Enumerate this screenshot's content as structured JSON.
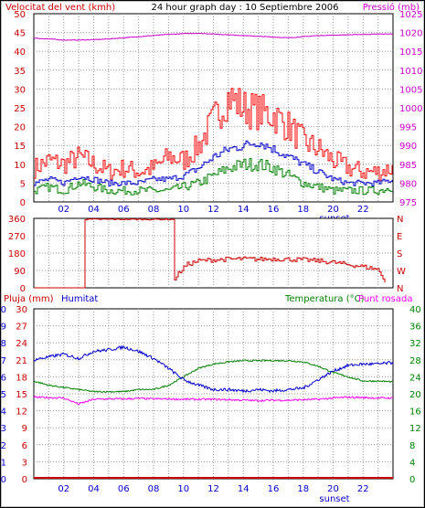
{
  "header": {
    "title": "24 hour graph day : 10 Septiembre 2006",
    "left_label": "Velocitat del vent (kmh)",
    "right_label": "Pressió (mb)"
  },
  "panel3_labels": {
    "rain": "Pluja (mm)",
    "humidity": "Humitat",
    "temperature": "Temperatura (°C)",
    "dewpoint": "Punt rosada"
  },
  "x_ticks": [
    "02",
    "04",
    "06",
    "08",
    "10",
    "12",
    "14",
    "16",
    "18",
    "20",
    "22"
  ],
  "sunset_label": "sunset",
  "colors": {
    "wind_gust": "#ff0000",
    "wind_avg": "#0000cc",
    "wind_low": "#008000",
    "pressure": "#cc00cc",
    "direction": "#cc0000",
    "humidity": "#0000cc",
    "temperature": "#008000",
    "dewpoint": "#ff00ff",
    "rain": "#cc0000",
    "grid": "#999999"
  },
  "chart_data": [
    {
      "type": "line",
      "title": "24 hour graph day : 10 Septiembre 2006",
      "ylabel": "Velocitat del vent (kmh)",
      "ylim": [
        0,
        50
      ],
      "yticks": [
        0,
        5,
        10,
        15,
        20,
        25,
        30,
        35,
        40,
        45,
        50
      ],
      "y2label": "Pressió (mb)",
      "y2lim": [
        975,
        1025
      ],
      "y2ticks": [
        975,
        980,
        985,
        990,
        995,
        1000,
        1005,
        1010,
        1015,
        1020,
        1025
      ],
      "x_hours": [
        0,
        1,
        2,
        3,
        4,
        5,
        6,
        7,
        8,
        9,
        10,
        11,
        12,
        13,
        14,
        15,
        16,
        17,
        18,
        19,
        20,
        21,
        22,
        23,
        24
      ],
      "series": [
        {
          "axis": "left",
          "values": [
            9,
            11,
            10,
            12,
            10,
            8,
            9,
            8,
            9,
            12,
            11,
            15,
            22,
            28,
            25,
            24,
            23,
            20,
            16,
            14,
            11,
            9,
            8,
            8,
            9
          ]
        },
        {
          "axis": "left",
          "values": [
            5,
            6,
            5,
            7,
            6,
            5,
            5,
            5,
            6,
            6,
            7,
            9,
            12,
            14,
            15,
            16,
            14,
            12,
            10,
            8,
            6,
            5,
            5,
            5,
            6
          ]
        },
        {
          "axis": "left",
          "values": [
            3,
            4,
            3,
            5,
            4,
            3,
            3,
            3,
            3,
            3,
            4,
            5,
            7,
            9,
            10,
            10,
            9,
            7,
            5,
            4,
            3,
            3,
            3,
            3,
            4
          ]
        },
        {
          "axis": "right",
          "values": [
            1018.5,
            1018.3,
            1018.0,
            1018.0,
            1018.1,
            1018.3,
            1018.6,
            1018.9,
            1019.2,
            1019.5,
            1019.7,
            1019.8,
            1019.6,
            1019.4,
            1019.2,
            1019.0,
            1018.8,
            1018.6,
            1018.9,
            1019.2,
            1019.3,
            1019.4,
            1019.5,
            1019.6,
            1019.6
          ]
        }
      ]
    },
    {
      "type": "line",
      "yticks": [
        0,
        90,
        180,
        270,
        360
      ],
      "ylim": [
        0,
        360
      ],
      "y2ticks": [
        "N",
        "W",
        "S",
        "E",
        "N"
      ],
      "series": [
        {
          "x_hours": [
            0,
            3.3,
            3.3,
            9.4,
            9.4,
            9.7,
            10.2,
            11,
            12,
            13,
            14,
            15,
            16,
            17,
            18,
            19,
            20,
            21,
            22,
            23,
            23.5
          ],
          "values": [
            0,
            0,
            355,
            355,
            40,
            80,
            120,
            140,
            145,
            148,
            150,
            148,
            150,
            148,
            145,
            140,
            132,
            120,
            110,
            95,
            20
          ]
        }
      ]
    },
    {
      "type": "line",
      "ylabel": "Pluja (mm)",
      "ylim": [
        0,
        10
      ],
      "yticks": [
        0,
        1,
        2,
        3,
        4,
        5,
        6,
        7,
        8,
        9,
        10
      ],
      "y_humidity_ticks": [
        0,
        12,
        24,
        36,
        48,
        60,
        72,
        84,
        96,
        108,
        120
      ],
      "y_humidity_tick_labels": [
        "0",
        "3",
        "6",
        "9",
        "12",
        "15",
        "18",
        "21",
        "24",
        "27",
        "30"
      ],
      "y2label": "Temperatura (°C)",
      "y2lim": [
        0,
        40
      ],
      "y2ticks": [
        0,
        4,
        8,
        12,
        16,
        20,
        24,
        28,
        32,
        36,
        40
      ],
      "x_hours": [
        0,
        1,
        2,
        3,
        4,
        5,
        6,
        7,
        8,
        9,
        10,
        11,
        12,
        13,
        14,
        15,
        16,
        17,
        18,
        19,
        20,
        21,
        22,
        23,
        24
      ],
      "series": [
        {
          "name": "Humitat",
          "axis": "left",
          "values": [
            84,
            86,
            88,
            85,
            90,
            91,
            93,
            90,
            85,
            78,
            70,
            66,
            63,
            63,
            62,
            63,
            62,
            63,
            64,
            70,
            76,
            80,
            81,
            81,
            82
          ]
        },
        {
          "name": "Temperatura (°C)",
          "axis": "right",
          "values": [
            23,
            22,
            21.5,
            21,
            20.5,
            20.5,
            20.5,
            21,
            21,
            22,
            24,
            26,
            27,
            27.5,
            27.8,
            27.8,
            27.8,
            27.8,
            27.5,
            26.5,
            25,
            24,
            23,
            23,
            22.8
          ]
        },
        {
          "name": "Punt rosada",
          "axis": "right",
          "values": [
            19.2,
            19.1,
            19.0,
            17.6,
            18.7,
            18.8,
            18.8,
            18.9,
            18.8,
            18.8,
            18.7,
            18.7,
            18.7,
            18.6,
            18.5,
            18.4,
            18.5,
            18.5,
            18.6,
            18.7,
            19.0,
            19.2,
            19.1,
            19.0,
            19.0
          ]
        },
        {
          "name": "Pluja (mm)",
          "axis": "left",
          "values": [
            0,
            0,
            0,
            0,
            0,
            0,
            0,
            0,
            0,
            0,
            0,
            0,
            0,
            0,
            0,
            0,
            0,
            0,
            0,
            0,
            0,
            0,
            0,
            0,
            0
          ]
        }
      ]
    }
  ]
}
